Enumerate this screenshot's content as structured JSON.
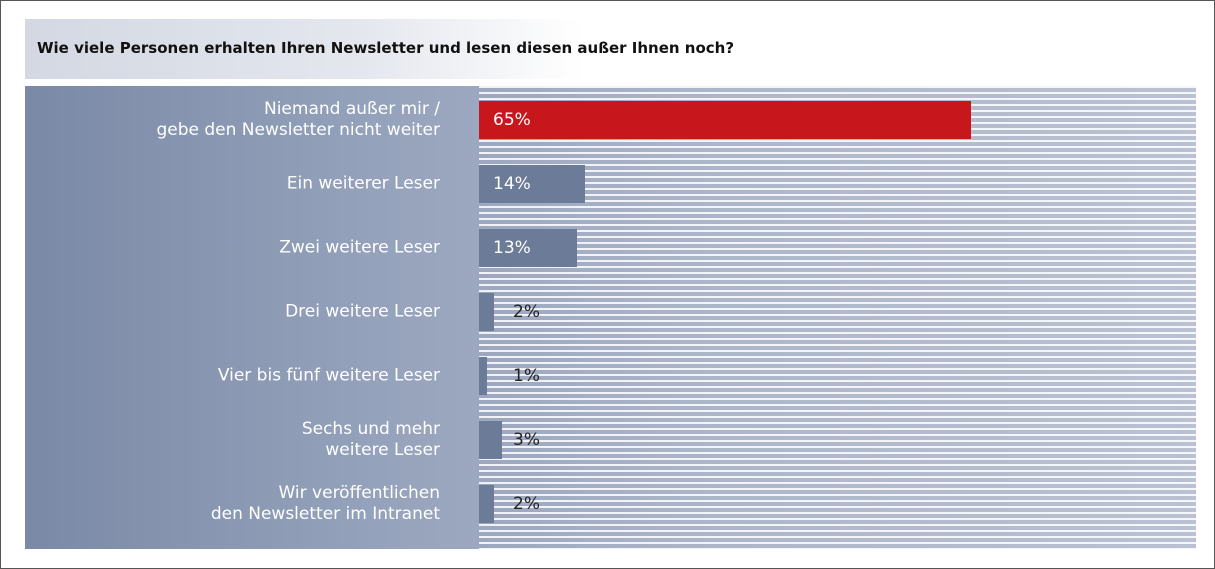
{
  "chart_data": {
    "type": "hbar",
    "title": "Wie viele Personen erhalten Ihren Newsletter und lesen diesen außer Ihnen noch?",
    "categories": [
      "Niemand außer mir /\ngebe den Newsletter nicht weiter",
      "Ein weiterer Leser",
      "Zwei weitere Leser",
      "Drei weitere Leser",
      "Vier bis fünf weitere Leser",
      "Sechs und mehr\nweitere Leser",
      "Wir veröffentlichen\nden Newsletter im Intranet"
    ],
    "values": [
      65,
      14,
      13,
      2,
      1,
      3,
      2
    ],
    "value_labels": [
      "65%",
      "14%",
      "13%",
      "2%",
      "1%",
      "3%",
      "2%"
    ],
    "colors": [
      "#c8161d",
      "#6b7b98",
      "#6b7b98",
      "#6b7b98",
      "#6b7b98",
      "#6b7b98",
      "#6b7b98"
    ]
  }
}
